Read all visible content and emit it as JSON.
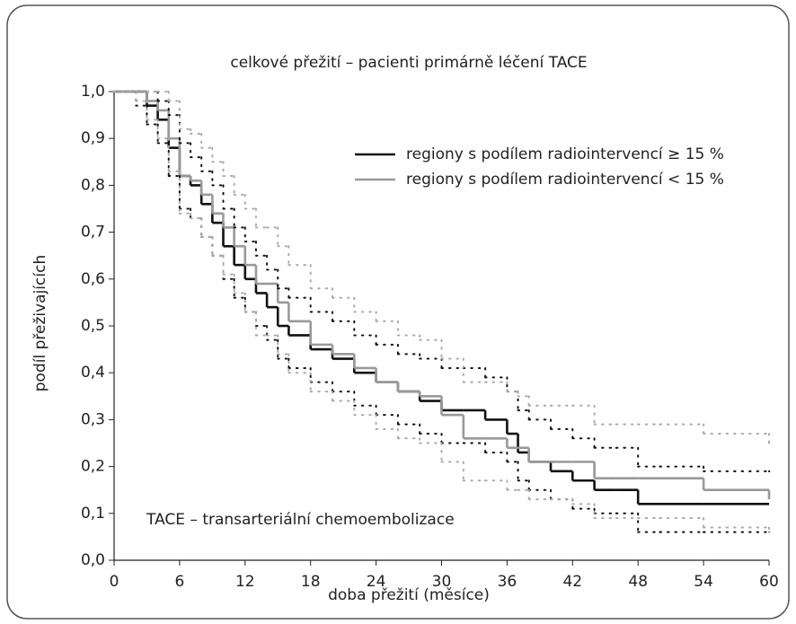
{
  "chart_data": {
    "type": "line",
    "step": true,
    "title": "celkové přežití  – pacienti primárně léčení TACE",
    "x_label": "doba přežití (měsíce)",
    "y_label": "podíl přeživajících",
    "annotation": "TACE – transarteriální chemoembolizace",
    "x": [
      0,
      2,
      3,
      4,
      5,
      6,
      7,
      8,
      9,
      10,
      11,
      12,
      13,
      14,
      15,
      16,
      18,
      20,
      22,
      24,
      26,
      28,
      30,
      32,
      34,
      36,
      37,
      38,
      40,
      42,
      44,
      46,
      48,
      50,
      54,
      60
    ],
    "series": [
      {
        "name": "regiony s podílem radiointervencí ≥ 15 %",
        "color": "#111111",
        "style": "solid",
        "values": [
          1.0,
          1.0,
          0.97,
          0.94,
          0.88,
          0.82,
          0.8,
          0.76,
          0.72,
          0.67,
          0.63,
          0.6,
          0.57,
          0.54,
          0.5,
          0.48,
          0.45,
          0.43,
          0.4,
          0.38,
          0.36,
          0.34,
          0.32,
          0.32,
          0.3,
          0.27,
          0.23,
          0.21,
          0.19,
          0.17,
          0.15,
          0.15,
          0.12,
          0.12,
          0.12,
          0.12
        ]
      },
      {
        "name": "regiony s podílem radiointervencí < 15 %",
        "color": "#999999",
        "style": "solid",
        "values": [
          1.0,
          1.0,
          0.98,
          0.96,
          0.9,
          0.82,
          0.81,
          0.78,
          0.74,
          0.71,
          0.67,
          0.63,
          0.59,
          0.59,
          0.55,
          0.51,
          0.46,
          0.44,
          0.41,
          0.38,
          0.36,
          0.35,
          0.31,
          0.26,
          0.26,
          0.24,
          0.24,
          0.21,
          0.21,
          0.21,
          0.175,
          0.175,
          0.175,
          0.175,
          0.15,
          0.13
        ]
      },
      {
        "color": "#111111",
        "style": "dotted",
        "values": [
          1.0,
          1.0,
          1.0,
          0.98,
          0.95,
          0.89,
          0.86,
          0.83,
          0.8,
          0.75,
          0.71,
          0.68,
          0.65,
          0.62,
          0.58,
          0.56,
          0.53,
          0.51,
          0.48,
          0.46,
          0.44,
          0.43,
          0.41,
          0.41,
          0.39,
          0.36,
          0.32,
          0.3,
          0.28,
          0.26,
          0.24,
          0.24,
          0.2,
          0.2,
          0.19,
          0.19
        ]
      },
      {
        "color": "#111111",
        "style": "dotted",
        "values": [
          1.0,
          0.97,
          0.93,
          0.89,
          0.82,
          0.75,
          0.73,
          0.69,
          0.65,
          0.6,
          0.56,
          0.53,
          0.5,
          0.47,
          0.43,
          0.41,
          0.38,
          0.36,
          0.33,
          0.31,
          0.29,
          0.27,
          0.25,
          0.25,
          0.23,
          0.21,
          0.17,
          0.15,
          0.13,
          0.11,
          0.1,
          0.1,
          0.06,
          0.06,
          0.06,
          0.06
        ]
      },
      {
        "color": "#aaaaaa",
        "style": "dotted",
        "values": [
          1.0,
          1.0,
          1.0,
          1.0,
          0.98,
          0.92,
          0.91,
          0.88,
          0.85,
          0.82,
          0.78,
          0.75,
          0.71,
          0.71,
          0.67,
          0.63,
          0.58,
          0.56,
          0.53,
          0.51,
          0.48,
          0.47,
          0.43,
          0.38,
          0.38,
          0.36,
          0.35,
          0.33,
          0.33,
          0.33,
          0.29,
          0.29,
          0.29,
          0.29,
          0.27,
          0.25
        ]
      },
      {
        "color": "#aaaaaa",
        "style": "dotted",
        "values": [
          1.0,
          0.98,
          0.94,
          0.9,
          0.83,
          0.74,
          0.73,
          0.69,
          0.65,
          0.61,
          0.57,
          0.53,
          0.48,
          0.48,
          0.44,
          0.4,
          0.36,
          0.34,
          0.31,
          0.28,
          0.26,
          0.25,
          0.21,
          0.17,
          0.17,
          0.15,
          0.15,
          0.13,
          0.13,
          0.12,
          0.09,
          0.09,
          0.09,
          0.09,
          0.07,
          0.06
        ]
      }
    ],
    "xlim": [
      0,
      60
    ],
    "xticks": [
      0,
      6,
      12,
      18,
      24,
      30,
      36,
      42,
      48,
      54,
      60
    ],
    "ylim": [
      0,
      1
    ],
    "yticks": [
      {
        "value": 0,
        "label": "0,0"
      },
      {
        "value": 0.1,
        "label": "0,1"
      },
      {
        "value": 0.2,
        "label": "0,2"
      },
      {
        "value": 0.3,
        "label": "0,3"
      },
      {
        "value": 0.4,
        "label": "0,4"
      },
      {
        "value": 0.5,
        "label": "0,5"
      },
      {
        "value": 0.6,
        "label": "0,6"
      },
      {
        "value": 0.7,
        "label": "0,7"
      },
      {
        "value": 0.8,
        "label": "0,8"
      },
      {
        "value": 0.9,
        "label": "0,9"
      },
      {
        "value": 1,
        "label": "1,0"
      }
    ],
    "grid": false,
    "legend": "upper right"
  }
}
